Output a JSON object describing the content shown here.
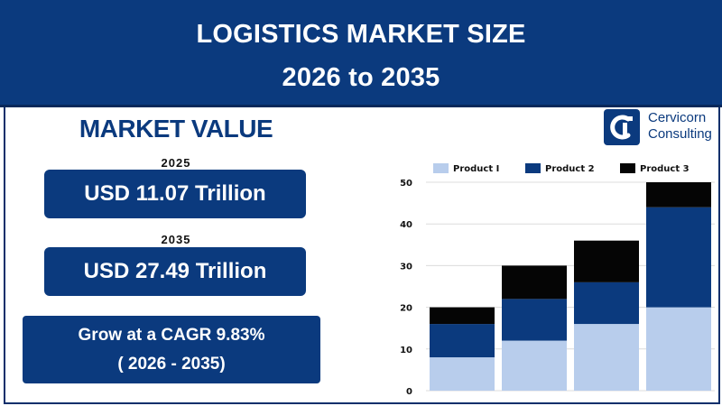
{
  "header": {
    "title_line1": "LOGISTICS MARKET SIZE",
    "title_line2": "2026 to 2035"
  },
  "market": {
    "heading": "MARKET VALUE",
    "year1": "2025",
    "value1": "USD 11.07 Trillion",
    "year2": "2035",
    "value2": "USD 27.49 Trillion",
    "cagr_line1": "Grow at a CAGR 9.83%",
    "cagr_line2": "( 2026 - 2035)"
  },
  "logo": {
    "name_line1": "Cervicorn",
    "name_line2": "Consulting"
  },
  "chart_data": {
    "type": "bar",
    "stacked": true,
    "categories": [
      "",
      "",
      "",
      ""
    ],
    "series": [
      {
        "name": "Product I",
        "color": "#b8cdec",
        "values": [
          8,
          12,
          16,
          20
        ]
      },
      {
        "name": "Product 2",
        "color": "#0b3a7e",
        "values": [
          8,
          10,
          10,
          24
        ]
      },
      {
        "name": "Product 3",
        "color": "#050505",
        "values": [
          4,
          8,
          10,
          6
        ]
      }
    ],
    "yticks": [
      "0",
      "10",
      "20",
      "30",
      "40",
      "50"
    ],
    "ylim": [
      0,
      50
    ],
    "grid": true,
    "legend": "top"
  }
}
